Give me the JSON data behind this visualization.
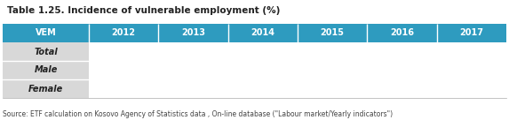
{
  "title": "Table 1.25. Incidence of vulnerable employment (%)",
  "header_row": [
    "VEM",
    "2012",
    "2013",
    "2014",
    "2015",
    "2016",
    "2017"
  ],
  "data_rows": [
    [
      "Total",
      "",
      "",
      "",
      "",
      "",
      ""
    ],
    [
      "Male",
      "",
      "",
      "",
      "",
      "",
      ""
    ],
    [
      "Female",
      "",
      "",
      "",
      "",
      "",
      ""
    ]
  ],
  "source_text": "Source: ETF calculation on Kosovo Agency of Statistics data , On-line database (\"Labour market/Yearly indicators\")",
  "header_bg": "#2E9BBF",
  "header_text_color": "#ffffff",
  "row_bg": "#d8d8d8",
  "title_fontsize": 7.5,
  "header_fontsize": 7.0,
  "cell_fontsize": 7.0,
  "source_fontsize": 5.5,
  "fig_width": 5.73,
  "fig_height": 1.36,
  "dpi": 100
}
